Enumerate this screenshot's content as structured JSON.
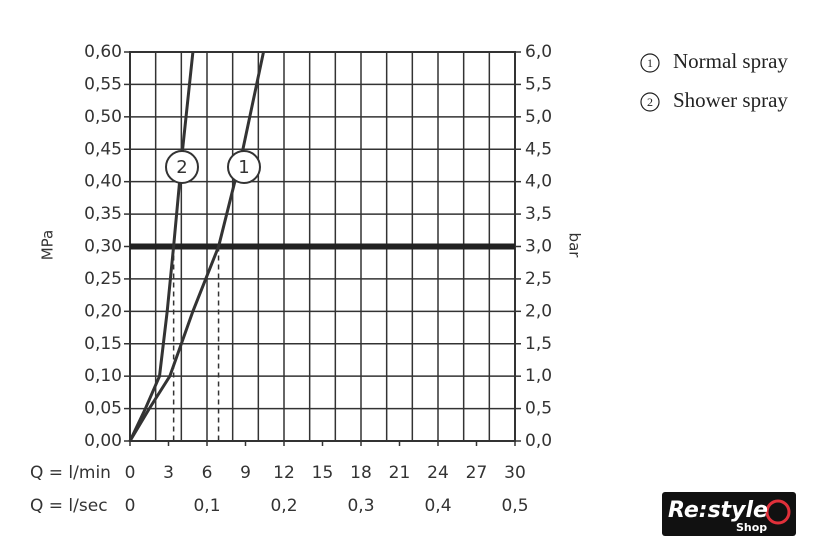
{
  "chart_data": {
    "type": "line",
    "xlabel": "Q = l/min",
    "x2label": "Q = l/sec",
    "ylabel": "MPa",
    "y2label": "bar",
    "xlim": [
      0,
      30
    ],
    "xticks": [
      0,
      3,
      6,
      9,
      12,
      15,
      18,
      21,
      24,
      27,
      30
    ],
    "xgrid": [
      0,
      2,
      4,
      6,
      8,
      10,
      12,
      14,
      16,
      18,
      20,
      22,
      24,
      26,
      28,
      30
    ],
    "x2lim": [
      0,
      0.5
    ],
    "x2ticks": [
      0,
      {
        "value": 0.1,
        "label": "0,1"
      },
      {
        "value": 0.2,
        "label": "0,2"
      },
      {
        "value": 0.3,
        "label": "0,3"
      },
      {
        "value": 0.4,
        "label": "0,4"
      },
      {
        "value": 0.5,
        "label": "0,5"
      }
    ],
    "ylim": [
      0,
      0.6
    ],
    "yticks": [
      {
        "value": 0,
        "label": "0,00"
      },
      {
        "value": 0.05,
        "label": "0,05"
      },
      {
        "value": 0.1,
        "label": "0,10"
      },
      {
        "value": 0.15,
        "label": "0,15"
      },
      {
        "value": 0.2,
        "label": "0,20"
      },
      {
        "value": 0.25,
        "label": "0,25"
      },
      {
        "value": 0.3,
        "label": "0,30"
      },
      {
        "value": 0.35,
        "label": "0,35"
      },
      {
        "value": 0.4,
        "label": "0,40"
      },
      {
        "value": 0.45,
        "label": "0,45"
      },
      {
        "value": 0.5,
        "label": "0,50"
      },
      {
        "value": 0.55,
        "label": "0,55"
      },
      {
        "value": 0.6,
        "label": "0,60"
      }
    ],
    "y2lim": [
      0,
      6
    ],
    "y2ticks": [
      {
        "value": 0,
        "label": "0,0"
      },
      {
        "value": 0.5,
        "label": "0,5"
      },
      {
        "value": 1,
        "label": "1,0"
      },
      {
        "value": 1.5,
        "label": "1,5"
      },
      {
        "value": 2,
        "label": "2,0"
      },
      {
        "value": 2.5,
        "label": "2,5"
      },
      {
        "value": 3,
        "label": "3,0"
      },
      {
        "value": 3.5,
        "label": "3,5"
      },
      {
        "value": 4,
        "label": "4,0"
      },
      {
        "value": 4.5,
        "label": "4,5"
      },
      {
        "value": 5,
        "label": "5,0"
      },
      {
        "value": 5.5,
        "label": "5,5"
      },
      {
        "value": 6,
        "label": "6,0"
      }
    ],
    "grid": true,
    "reference_line": 0.3,
    "drop_lines": [
      3.4,
      6.9
    ],
    "series": [
      {
        "name": "Normal spray",
        "marker": "1",
        "color": "#333333",
        "x": [
          0,
          1.5,
          3.1,
          4.9,
          6.9,
          8.8,
          10.4
        ],
        "values": [
          0,
          0.05,
          0.1,
          0.2,
          0.3,
          0.45,
          0.6
        ]
      },
      {
        "name": "Shower spray",
        "marker": "2",
        "color": "#333333",
        "x": [
          0,
          1.2,
          2.3,
          2.9,
          3.4,
          4.1,
          4.9
        ],
        "values": [
          0,
          0.05,
          0.1,
          0.2,
          0.3,
          0.45,
          0.6
        ]
      }
    ]
  },
  "logo": {
    "text": "Re:style",
    "sub": "Shop"
  }
}
